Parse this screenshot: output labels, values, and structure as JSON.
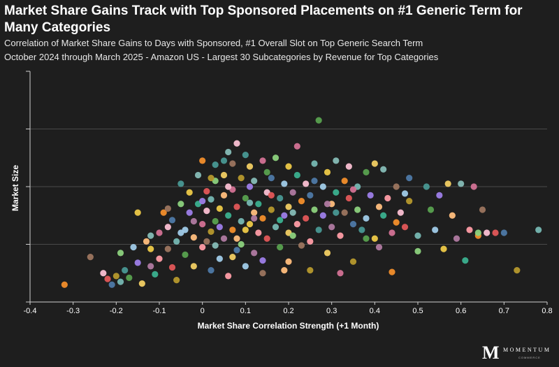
{
  "chart_data": {
    "type": "scatter",
    "title": "Market Share Gains Track with Top Sponsored Placements on #1 Generic Term for Many Categories",
    "subtitle": "Correlation of Market Share Gains to Days with Sponsored, #1 Overall Slot on Top Generic Search Term",
    "subtitle2": "October 2024 through March 2025 - Amazon US - Largest 30 Subcategories by Revenue for Top Categories",
    "xlabel": "Market Share Correlation Strength (+1 Month)",
    "ylabel": "Market Size",
    "xlim": [
      -0.4,
      0.8
    ],
    "xticks": [
      "-0.4",
      "-0.3",
      "-0.2",
      "-0.1",
      "0",
      "0.1",
      "0.2",
      "0.3",
      "0.4",
      "0.5",
      "0.6",
      "0.7",
      "0.8"
    ],
    "ylim": [
      0,
      4
    ],
    "yticks_shown": false,
    "grid": "horizontal",
    "legend": "none",
    "palette": [
      "#f28e2b",
      "#e15759",
      "#76b7b2",
      "#59a14f",
      "#edc948",
      "#b07aa1",
      "#ff9da7",
      "#9c755f",
      "#4e79a7",
      "#8cd17d",
      "#a0cbe8",
      "#f1ce63",
      "#86bcb6",
      "#d37295",
      "#fabfd2",
      "#b6992d",
      "#499894",
      "#9d7ee8",
      "#ffbe7d",
      "#3bb08f"
    ],
    "points": [
      [
        -0.32,
        0.3
      ],
      [
        -0.26,
        0.78
      ],
      [
        -0.23,
        0.5
      ],
      [
        -0.22,
        0.4
      ],
      [
        -0.21,
        0.3
      ],
      [
        -0.2,
        0.45
      ],
      [
        -0.19,
        0.35
      ],
      [
        -0.19,
        0.85
      ],
      [
        -0.18,
        0.55
      ],
      [
        -0.17,
        0.42
      ],
      [
        -0.16,
        0.95
      ],
      [
        -0.15,
        0.68
      ],
      [
        -0.15,
        1.55
      ],
      [
        -0.14,
        0.32
      ],
      [
        -0.13,
        1.05
      ],
      [
        -0.12,
        0.62
      ],
      [
        -0.12,
        1.15
      ],
      [
        -0.11,
        0.48
      ],
      [
        -0.1,
        0.75
      ],
      [
        -0.1,
        1.2
      ],
      [
        -0.09,
        1.55
      ],
      [
        -0.08,
        0.92
      ],
      [
        -0.08,
        1.3
      ],
      [
        -0.07,
        0.6
      ],
      [
        -0.07,
        1.42
      ],
      [
        -0.06,
        0.38
      ],
      [
        -0.06,
        1.05
      ],
      [
        -0.05,
        1.7
      ],
      [
        -0.05,
        2.05
      ],
      [
        -0.04,
        0.82
      ],
      [
        -0.04,
        1.25
      ],
      [
        -0.03,
        1.55
      ],
      [
        -0.03,
        1.9
      ],
      [
        -0.02,
        0.62
      ],
      [
        -0.02,
        1.12
      ],
      [
        -0.02,
        1.4
      ],
      [
        -0.01,
        2.2
      ],
      [
        -0.01,
        1.7
      ],
      [
        0.0,
        0.95
      ],
      [
        0.0,
        1.35
      ],
      [
        0.0,
        2.45
      ],
      [
        0.01,
        1.05
      ],
      [
        0.01,
        1.58
      ],
      [
        0.01,
        1.92
      ],
      [
        0.02,
        0.55
      ],
      [
        0.02,
        1.22
      ],
      [
        0.02,
        1.78
      ],
      [
        0.03,
        2.1
      ],
      [
        0.03,
        2.38
      ],
      [
        0.03,
        1.4
      ],
      [
        0.04,
        0.75
      ],
      [
        0.04,
        1.3
      ],
      [
        0.04,
        1.62
      ],
      [
        0.05,
        2.2
      ],
      [
        0.05,
        1.85
      ],
      [
        0.05,
        1.1
      ],
      [
        0.06,
        2.6
      ],
      [
        0.06,
        1.5
      ],
      [
        0.06,
        0.45
      ],
      [
        0.07,
        1.95
      ],
      [
        0.07,
        1.25
      ],
      [
        0.07,
        2.4
      ],
      [
        0.08,
        2.75
      ],
      [
        0.08,
        1.65
      ],
      [
        0.08,
        0.9
      ],
      [
        0.09,
        2.15
      ],
      [
        0.09,
        1.4
      ],
      [
        0.09,
        1.0
      ],
      [
        0.1,
        2.55
      ],
      [
        0.1,
        1.8
      ],
      [
        0.1,
        0.62
      ],
      [
        0.11,
        2.0
      ],
      [
        0.11,
        1.35
      ],
      [
        0.11,
        2.35
      ],
      [
        0.12,
        1.55
      ],
      [
        0.12,
        0.85
      ],
      [
        0.12,
        2.1
      ],
      [
        0.13,
        1.7
      ],
      [
        0.13,
        1.2
      ],
      [
        0.14,
        2.45
      ],
      [
        0.14,
        1.45
      ],
      [
        0.14,
        0.5
      ],
      [
        0.15,
        1.9
      ],
      [
        0.15,
        1.1
      ],
      [
        0.16,
        2.15
      ],
      [
        0.16,
        1.6
      ],
      [
        0.17,
        1.3
      ],
      [
        0.17,
        2.5
      ],
      [
        0.18,
        1.8
      ],
      [
        0.18,
        0.95
      ],
      [
        0.19,
        2.05
      ],
      [
        0.19,
        1.5
      ],
      [
        0.2,
        2.35
      ],
      [
        0.2,
        1.2
      ],
      [
        0.2,
        0.7
      ],
      [
        0.21,
        1.9
      ],
      [
        0.21,
        1.55
      ],
      [
        0.22,
        2.2
      ],
      [
        0.22,
        1.35
      ],
      [
        0.22,
        2.7
      ],
      [
        0.23,
        1.75
      ],
      [
        0.23,
        0.98
      ],
      [
        0.24,
        2.05
      ],
      [
        0.24,
        1.45
      ],
      [
        0.25,
        1.85
      ],
      [
        0.25,
        0.55
      ],
      [
        0.26,
        2.4
      ],
      [
        0.26,
        1.6
      ],
      [
        0.27,
        1.25
      ],
      [
        0.27,
        3.15
      ],
      [
        0.28,
        2.0
      ],
      [
        0.28,
        1.5
      ],
      [
        0.29,
        2.25
      ],
      [
        0.29,
        0.85
      ],
      [
        0.3,
        1.7
      ],
      [
        0.3,
        1.3
      ],
      [
        0.31,
        2.45
      ],
      [
        0.31,
        1.9
      ],
      [
        0.32,
        1.15
      ],
      [
        0.32,
        0.5
      ],
      [
        0.33,
        2.1
      ],
      [
        0.33,
        1.55
      ],
      [
        0.34,
        2.35
      ],
      [
        0.34,
        1.8
      ],
      [
        0.35,
        1.35
      ],
      [
        0.35,
        0.7
      ],
      [
        0.36,
        2.0
      ],
      [
        0.36,
        1.6
      ],
      [
        0.37,
        1.25
      ],
      [
        0.38,
        2.25
      ],
      [
        0.38,
        1.45
      ],
      [
        0.39,
        1.85
      ],
      [
        0.4,
        1.1
      ],
      [
        0.4,
        2.4
      ],
      [
        0.41,
        1.65
      ],
      [
        0.41,
        0.95
      ],
      [
        0.42,
        2.3
      ],
      [
        0.42,
        1.5
      ],
      [
        0.43,
        1.8
      ],
      [
        0.44,
        1.2
      ],
      [
        0.44,
        0.52
      ],
      [
        0.45,
        2.0
      ],
      [
        0.46,
        1.55
      ],
      [
        0.47,
        1.3
      ],
      [
        0.48,
        2.15
      ],
      [
        0.48,
        1.75
      ],
      [
        0.5,
        1.15
      ],
      [
        0.5,
        0.88
      ],
      [
        0.52,
        2.0
      ],
      [
        0.53,
        1.6
      ],
      [
        0.54,
        1.25
      ],
      [
        0.55,
        1.85
      ],
      [
        0.56,
        0.92
      ],
      [
        0.57,
        2.05
      ],
      [
        0.58,
        1.5
      ],
      [
        0.59,
        1.1
      ],
      [
        0.6,
        2.05
      ],
      [
        0.61,
        0.72
      ],
      [
        0.62,
        1.25
      ],
      [
        0.63,
        2.0
      ],
      [
        0.64,
        1.15
      ],
      [
        0.65,
        1.6
      ],
      [
        0.66,
        1.2
      ],
      [
        0.68,
        1.2
      ],
      [
        0.7,
        1.2
      ],
      [
        0.73,
        0.55
      ],
      [
        0.78,
        1.25
      ],
      [
        0.64,
        1.2
      ],
      [
        0.05,
        2.45
      ],
      [
        0.15,
        2.25
      ],
      [
        -0.05,
        1.2
      ],
      [
        0.0,
        1.75
      ],
      [
        0.1,
        1.25
      ],
      [
        0.2,
        1.65
      ],
      [
        0.08,
        1.1
      ],
      [
        0.12,
        1.45
      ],
      [
        0.03,
        0.98
      ],
      [
        0.18,
        1.42
      ],
      [
        0.25,
        1.05
      ],
      [
        0.35,
        1.95
      ],
      [
        0.45,
        1.38
      ],
      [
        -0.08,
        1.62
      ],
      [
        0.06,
        2.0
      ],
      [
        0.16,
        1.85
      ],
      [
        0.26,
        2.1
      ],
      [
        0.02,
        2.15
      ],
      [
        0.11,
        1.72
      ],
      [
        0.21,
        1.15
      ],
      [
        0.31,
        1.55
      ],
      [
        0.38,
        1.1
      ],
      [
        0.47,
        1.88
      ],
      [
        0.14,
        0.72
      ],
      [
        -0.12,
        0.92
      ],
      [
        0.07,
        0.78
      ],
      [
        0.19,
        0.55
      ],
      [
        0.29,
        1.7
      ]
    ]
  },
  "branding": {
    "mark": "M",
    "name": "MOMENTUM",
    "sub": "COMMERCE"
  }
}
